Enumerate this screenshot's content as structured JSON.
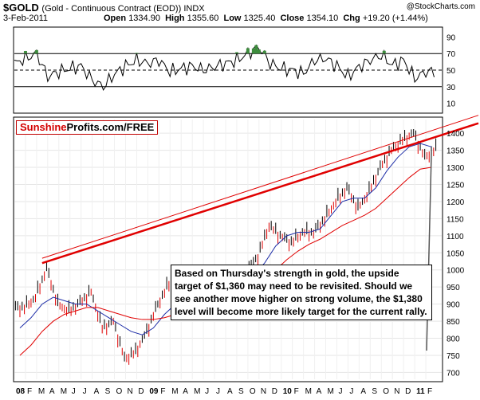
{
  "header": {
    "symbol": "$GOLD",
    "description": "(Gold - Continuous Contract (EOD)) INDX",
    "date": "3-Feb-2011",
    "open_label": "Open",
    "open": "1334.90",
    "high_label": "High",
    "high": "1355.60",
    "low_label": "Low",
    "low": "1325.40",
    "close_label": "Close",
    "close": "1354.10",
    "chg_label": "Chg",
    "chg": "+19.20 (+1.44%)",
    "credit": "@StockCharts.com"
  },
  "logo": {
    "part1": "Sunshine",
    "part2": "Profits.com/FREE"
  },
  "annotation": "Based on Thursday's strength in gold, the upside target of $1,360 may need to be revisited. Should we see another move higher on strong volume, the $1,380 level will become more likely target for the current rally.",
  "colors": {
    "up": "#000000",
    "down": "#e00000",
    "ma_short": "#1f2fa8",
    "ma_long": "#e00000",
    "trend": "#e00000",
    "rsi_fill": "#3d8c3d"
  },
  "chart_data": [
    {
      "type": "line",
      "name_hint": "rsi",
      "y_ticks": [
        10,
        30,
        50,
        70,
        90
      ],
      "ylim": [
        0,
        100
      ],
      "ref_lines": [
        30,
        50,
        70
      ],
      "x_months": [
        "2008-01",
        "2008-02",
        "2008-03",
        "2008-04",
        "2008-05",
        "2008-06",
        "2008-07",
        "2008-08",
        "2008-09",
        "2008-10",
        "2008-11",
        "2008-12",
        "2009-01",
        "2009-02",
        "2009-03",
        "2009-04",
        "2009-05",
        "2009-06",
        "2009-07",
        "2009-08",
        "2009-09",
        "2009-10",
        "2009-11",
        "2009-12",
        "2010-01",
        "2010-02",
        "2010-03",
        "2010-04",
        "2010-05",
        "2010-06",
        "2010-07",
        "2010-08",
        "2010-09",
        "2010-10",
        "2010-11",
        "2010-12",
        "2011-01",
        "2011-02"
      ],
      "values": [
        58,
        64,
        70,
        42,
        48,
        52,
        55,
        38,
        30,
        45,
        55,
        62,
        58,
        62,
        48,
        52,
        55,
        50,
        54,
        58,
        62,
        70,
        78,
        58,
        52,
        50,
        46,
        62,
        64,
        55,
        42,
        54,
        62,
        68,
        56,
        62,
        40,
        48
      ]
    },
    {
      "type": "line",
      "name_hint": "price",
      "y_ticks": [
        700,
        750,
        800,
        850,
        900,
        950,
        1000,
        1050,
        1100,
        1150,
        1200,
        1250,
        1300,
        1350,
        1400
      ],
      "ylim": [
        680,
        1440
      ],
      "x_tick_labels": [
        "08",
        "F",
        "M",
        "A",
        "M",
        "J",
        "J",
        "A",
        "S",
        "O",
        "N",
        "D",
        "09",
        "F",
        "M",
        "A",
        "M",
        "J",
        "J",
        "A",
        "S",
        "O",
        "N",
        "D",
        "10",
        "F",
        "M",
        "A",
        "M",
        "J",
        "J",
        "A",
        "S",
        "O",
        "N",
        "D",
        "11",
        "F"
      ],
      "x_months": [
        "2008-01",
        "2008-02",
        "2008-03",
        "2008-04",
        "2008-05",
        "2008-06",
        "2008-07",
        "2008-08",
        "2008-09",
        "2008-10",
        "2008-11",
        "2008-12",
        "2009-01",
        "2009-02",
        "2009-03",
        "2009-04",
        "2009-05",
        "2009-06",
        "2009-07",
        "2009-08",
        "2009-09",
        "2009-10",
        "2009-11",
        "2009-12",
        "2010-01",
        "2010-02",
        "2010-03",
        "2010-04",
        "2010-05",
        "2010-06",
        "2010-07",
        "2010-08",
        "2010-09",
        "2010-10",
        "2010-11",
        "2010-12",
        "2011-01",
        "2011-02"
      ],
      "close": [
        890,
        920,
        1005,
        900,
        880,
        905,
        935,
        830,
        850,
        740,
        760,
        820,
        900,
        960,
        930,
        900,
        950,
        940,
        930,
        950,
        1000,
        1040,
        1130,
        1100,
        1080,
        1110,
        1110,
        1150,
        1200,
        1240,
        1180,
        1230,
        1300,
        1350,
        1380,
        1400,
        1330,
        1354
      ],
      "ma_short": [
        830,
        860,
        900,
        920,
        910,
        900,
        900,
        880,
        860,
        840,
        820,
        810,
        830,
        870,
        900,
        910,
        920,
        930,
        940,
        950,
        960,
        985,
        1020,
        1070,
        1100,
        1110,
        1110,
        1120,
        1160,
        1200,
        1210,
        1210,
        1240,
        1290,
        1330,
        1360,
        1370,
        1360
      ],
      "ma_long": [
        750,
        780,
        820,
        850,
        870,
        880,
        890,
        890,
        880,
        870,
        860,
        855,
        855,
        860,
        870,
        880,
        890,
        900,
        910,
        920,
        935,
        955,
        975,
        1000,
        1030,
        1055,
        1075,
        1090,
        1110,
        1130,
        1145,
        1160,
        1180,
        1210,
        1240,
        1270,
        1295,
        1300
      ],
      "trendline": {
        "x": [
          "2008-03",
          "2011-02"
        ],
        "y": [
          1020,
          1385
        ]
      }
    }
  ]
}
